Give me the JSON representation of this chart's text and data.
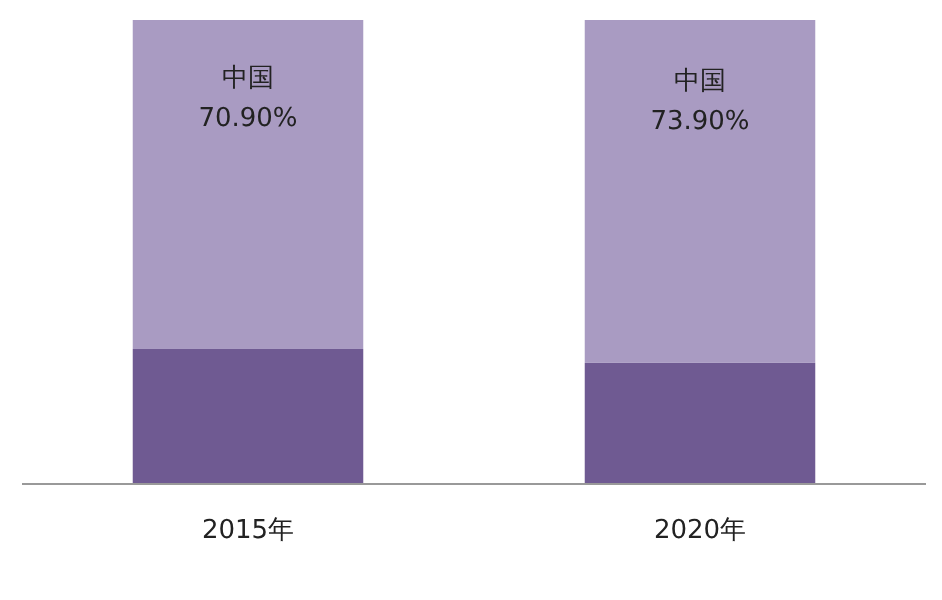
{
  "chart_data": {
    "type": "bar",
    "stacked": true,
    "categories": [
      "2015年",
      "2020年"
    ],
    "series": [
      {
        "color": "#6f5a92",
        "values": [
          29.1,
          26.1
        ]
      },
      {
        "name": "中国",
        "color": "#a99bc2",
        "values": [
          70.9,
          73.9
        ],
        "value_labels": [
          "70.90%",
          "73.90%"
        ]
      }
    ]
  }
}
